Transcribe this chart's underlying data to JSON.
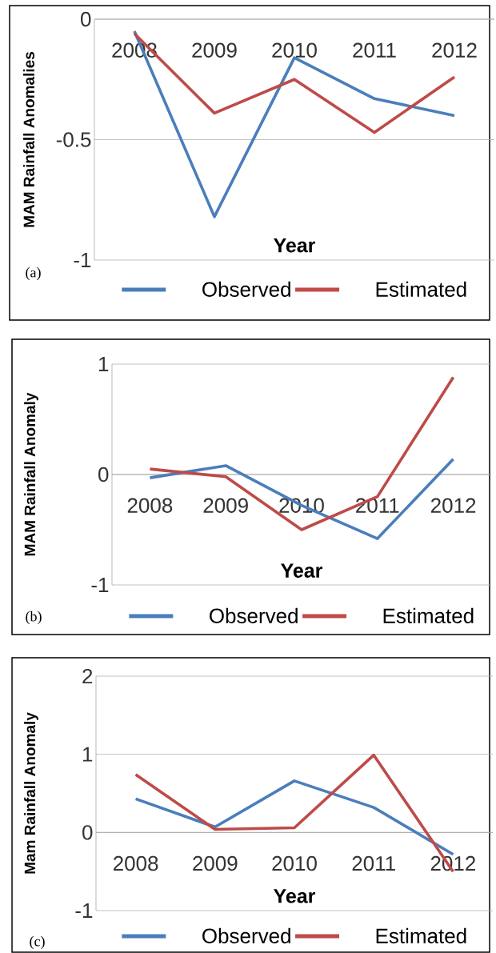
{
  "chart_data": [
    {
      "type": "line",
      "ylabel": "MAM Rainfall Anomalies",
      "xlabel": "Year",
      "categories": [
        "2008",
        "2009",
        "2010",
        "2011",
        "2012"
      ],
      "series": [
        {
          "name": "Observed",
          "color": "#4a7ebb",
          "values": [
            -0.05,
            -0.82,
            -0.16,
            -0.33,
            -0.4
          ]
        },
        {
          "name": "Estimated",
          "color": "#be4b48",
          "values": [
            -0.06,
            -0.39,
            -0.25,
            -0.47,
            -0.24
          ]
        }
      ],
      "ylim": [
        -1,
        0
      ],
      "yticks": [
        -1,
        -0.5,
        0
      ],
      "grid": "y",
      "legend": "bottom",
      "marker": "none",
      "line_style": "solid",
      "annotations": [
        "(a)"
      ]
    },
    {
      "type": "line",
      "ylabel": "MAM Rainfall Anomaly",
      "xlabel": "Year",
      "categories": [
        "2008",
        "2009",
        "2010",
        "2011",
        "2012"
      ],
      "series": [
        {
          "name": "Observed",
          "color": "#4a7ebb",
          "values": [
            -0.03,
            0.08,
            -0.28,
            -0.58,
            0.14
          ]
        },
        {
          "name": "Estimated",
          "color": "#be4b48",
          "values": [
            0.05,
            -0.02,
            -0.5,
            -0.2,
            0.88
          ]
        }
      ],
      "ylim": [
        -1,
        1
      ],
      "yticks": [
        -1,
        0,
        1
      ],
      "grid": "y",
      "legend": "bottom",
      "marker": "none",
      "line_style": "solid",
      "annotations": [
        "(b)"
      ]
    },
    {
      "type": "line",
      "ylabel": "Mam Rainfall Anomaly",
      "xlabel": "Year",
      "categories": [
        "2008",
        "2009",
        "2010",
        "2011",
        "2012"
      ],
      "series": [
        {
          "name": "Observed",
          "color": "#4a7ebb",
          "values": [
            0.43,
            0.07,
            0.66,
            0.32,
            -0.28
          ]
        },
        {
          "name": "Estimated",
          "color": "#be4b48",
          "values": [
            0.74,
            0.04,
            0.06,
            0.99,
            -0.5
          ]
        }
      ],
      "ylim": [
        -1,
        2
      ],
      "yticks": [
        -1,
        0,
        1,
        2
      ],
      "grid": "y",
      "legend": "bottom",
      "marker": "none",
      "line_style": "solid",
      "annotations": [
        "(c)"
      ]
    }
  ]
}
